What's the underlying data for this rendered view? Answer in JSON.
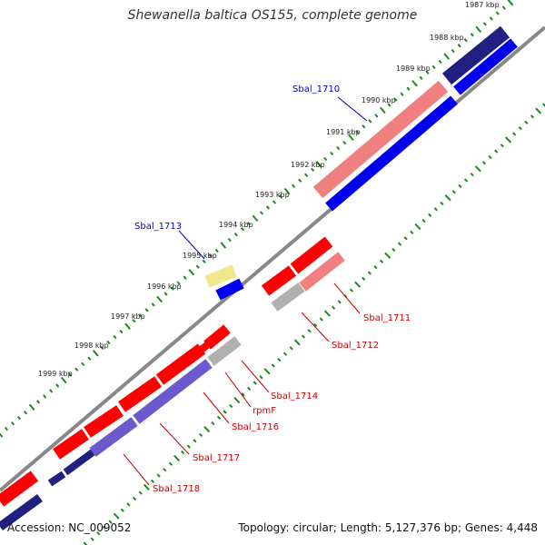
{
  "title": "Shewanella baltica OS155, complete genome",
  "footer": {
    "accession": "Accession: NC_009052",
    "summary": "Topology: circular; Length: 5,127,376 bp; Genes: 4,448"
  },
  "colors": {
    "backbone": "#888888",
    "tick": "#1a8a1a",
    "label_blue": "#0000cc",
    "label_red": "#cc0000",
    "gene_red": "#ff0000",
    "gene_pink": "#f08080",
    "gene_blue": "#0000ee",
    "gene_navy": "#202080",
    "gene_purple": "#6a5acd",
    "gene_yellow": "#f0e68c",
    "gene_gray": "#b0b0b0"
  },
  "ticks": [
    {
      "label": "1987 kbp"
    },
    {
      "label": "1988 kbp"
    },
    {
      "label": "1989 kbp"
    },
    {
      "label": "1990 kbp"
    },
    {
      "label": "1991 kbp"
    },
    {
      "label": "1992 kbp"
    },
    {
      "label": "1993 kbp"
    },
    {
      "label": "1994 kbp"
    },
    {
      "label": "1995 kbp"
    },
    {
      "label": "1996 kbp"
    },
    {
      "label": "1997 kbp"
    },
    {
      "label": "1998 kbp"
    },
    {
      "label": "1999 kbp"
    }
  ],
  "gene_labels": [
    {
      "name": "Sbal_1710",
      "color": "blue"
    },
    {
      "name": "Sbal_1713",
      "color": "blue"
    },
    {
      "name": "Sbal_1711",
      "color": "red"
    },
    {
      "name": "Sbal_1712",
      "color": "red"
    },
    {
      "name": "Sbal_1714",
      "color": "red"
    },
    {
      "name": "rpmF",
      "color": "red"
    },
    {
      "name": "Sbal_1716",
      "color": "red"
    },
    {
      "name": "Sbal_1717",
      "color": "red"
    },
    {
      "name": "Sbal_1718",
      "color": "red"
    }
  ]
}
